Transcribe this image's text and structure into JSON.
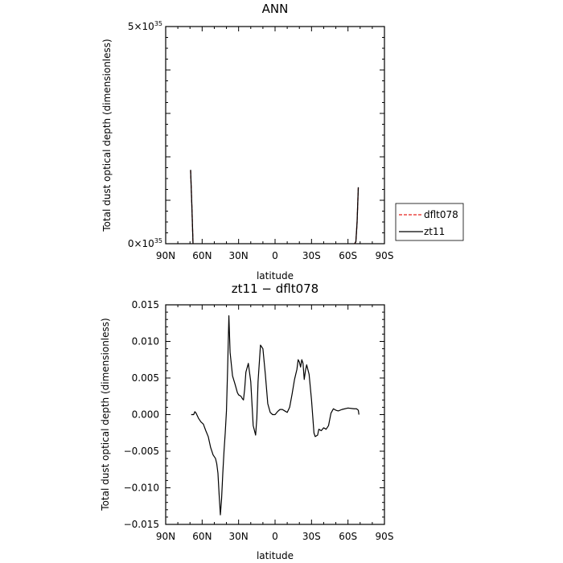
{
  "chart_data": [
    {
      "type": "line",
      "title": "ANN",
      "xlabel": "latitude",
      "ylabel": "Total dust optical depth (dimensionless)",
      "xticks": [
        "90N",
        "60N",
        "30N",
        "0",
        "30S",
        "60S",
        "90S"
      ],
      "xlim": [
        90,
        -90
      ],
      "ylim": [
        0,
        5
      ],
      "ytick_labels": [
        {
          "value": 0,
          "mant": "0",
          "base": "×10",
          "exp": "35"
        },
        {
          "value": 5,
          "mant": "5",
          "base": "×10",
          "exp": "35"
        }
      ],
      "legend_position": "right",
      "colors": {
        "dflt078": "#e8231e",
        "zt11": "#000000"
      },
      "series": [
        {
          "name": "dflt078",
          "style": "dashed",
          "segments": [
            [
              [
                69.5,
                1.68
              ],
              [
                68.5,
                0.9
              ],
              [
                67.5,
                0.0
              ]
            ],
            [
              [
                -65.5,
                0.0
              ],
              [
                -66.5,
                0.05
              ],
              [
                -67.5,
                0.5
              ],
              [
                -68.5,
                1.29
              ]
            ]
          ]
        },
        {
          "name": "zt11",
          "style": "solid",
          "segments": [
            [
              [
                69.5,
                1.7
              ],
              [
                68.5,
                0.9
              ],
              [
                67.5,
                0.0
              ]
            ],
            [
              [
                -65.5,
                0.0
              ],
              [
                -66.5,
                0.05
              ],
              [
                -67.5,
                0.5
              ],
              [
                -68.5,
                1.3
              ]
            ]
          ]
        }
      ]
    },
    {
      "type": "line",
      "title": "zt11 − dflt078",
      "xlabel": "latitude",
      "ylabel": "Total dust optical depth (dimensionless)",
      "xticks": [
        "90N",
        "60N",
        "30N",
        "0",
        "30S",
        "60S",
        "90S"
      ],
      "xlim": [
        90,
        -90
      ],
      "ylim": [
        -0.015,
        0.015
      ],
      "yticks": [
        {
          "value": 0.015,
          "label": "0.015"
        },
        {
          "value": 0.01,
          "label": "0.010"
        },
        {
          "value": 0.005,
          "label": "0.005"
        },
        {
          "value": 0,
          "label": "0.000"
        },
        {
          "value": -0.005,
          "label": "−0.005"
        },
        {
          "value": -0.01,
          "label": "−0.010"
        },
        {
          "value": -0.015,
          "label": "−0.015"
        }
      ],
      "series": [
        {
          "name": "zt11 − dflt078",
          "x": [
            69,
            67,
            66,
            65,
            63,
            61,
            59,
            57,
            55,
            53,
            51,
            49,
            48,
            47,
            46,
            45,
            44,
            43,
            42,
            41,
            40,
            39,
            38,
            37,
            35,
            33,
            31,
            30,
            28,
            27,
            26,
            25,
            24,
            22,
            20,
            18,
            16,
            15,
            14,
            12,
            10,
            8,
            6,
            4,
            2,
            0,
            -2,
            -4,
            -6,
            -8,
            -10,
            -12,
            -14,
            -16,
            -18,
            -19,
            -20,
            -21,
            -22,
            -23,
            -24,
            -25,
            -26,
            -28,
            -30,
            -32,
            -33,
            -35,
            -36,
            -38,
            -40,
            -42,
            -44,
            -46,
            -48,
            -50,
            -52,
            -55,
            -60,
            -65,
            -67,
            -68.5,
            -69
          ],
          "y": [
            0.0,
            0.0,
            0.0004,
            0.0002,
            -0.0005,
            -0.001,
            -0.0013,
            -0.0022,
            -0.003,
            -0.0045,
            -0.0055,
            -0.006,
            -0.0067,
            -0.008,
            -0.011,
            -0.0137,
            -0.0115,
            -0.008,
            -0.005,
            -0.0025,
            0.0005,
            0.0065,
            0.0135,
            0.0085,
            0.0053,
            0.0042,
            0.003,
            0.0027,
            0.0025,
            0.0022,
            0.002,
            0.0035,
            0.0058,
            0.007,
            0.0045,
            -0.0015,
            -0.0028,
            -0.0005,
            0.0045,
            0.0095,
            0.009,
            0.0055,
            0.0015,
            0.0003,
            0.0,
            0.0,
            0.0004,
            0.0007,
            0.0007,
            0.0005,
            0.0003,
            0.001,
            0.0028,
            0.0048,
            0.0062,
            0.0075,
            0.0072,
            0.0065,
            0.0075,
            0.007,
            0.0048,
            0.006,
            0.0068,
            0.0055,
            0.002,
            -0.0025,
            -0.003,
            -0.0028,
            -0.002,
            -0.0022,
            -0.0018,
            -0.002,
            -0.0015,
            0.0002,
            0.0008,
            0.0006,
            0.0005,
            0.0007,
            0.0009,
            0.0008,
            0.0008,
            0.0006,
            0.0
          ]
        }
      ]
    }
  ]
}
